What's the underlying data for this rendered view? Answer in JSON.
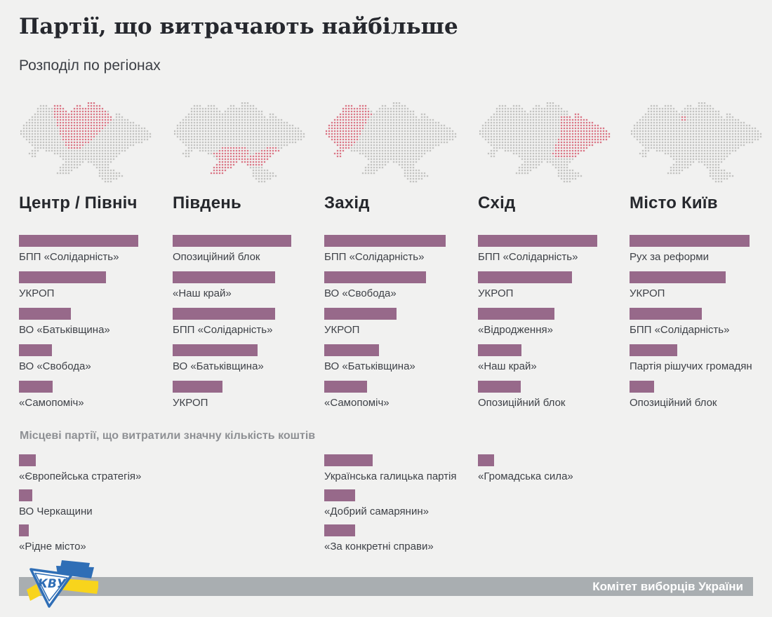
{
  "header": {
    "title": "Партії, що витрачають найбільше",
    "subtitle": "Розподіл по регіонах"
  },
  "local_heading": "Місцеві партії, що витратили значну кількість коштів",
  "footer": {
    "credit": "Комітет виборців України",
    "logo_text": "КВУ"
  },
  "colors": {
    "background": "#f1f1f0",
    "bar": "#97698a",
    "dot_gray": "#b5b4b3",
    "dot_red": "#d25166",
    "title": "#26282e",
    "label": "#3e4147",
    "section_heading": "#8e9094",
    "footer_bar": "#a9aeb1",
    "footer_text": "#ffffff",
    "logo_blue": "#2f6eb6",
    "logo_yellow": "#f8d41c"
  },
  "chart_data": {
    "type": "bar",
    "orientation": "horizontal",
    "units": "relative bar width in px (no numeric values are shown in the image)",
    "regions": [
      {
        "title": "Центр / Північ",
        "map_highlight": "center_north",
        "parties": [
          {
            "name": "БПП «Солідарність»",
            "value": 170
          },
          {
            "name": "УКРОП",
            "value": 124
          },
          {
            "name": "ВО «Батьківщина»",
            "value": 74
          },
          {
            "name": "ВО «Свобода»",
            "value": 47
          },
          {
            "name": "«Самопоміч»",
            "value": 48
          }
        ],
        "local_parties": [
          {
            "name": "«Європейська стратегія»",
            "value": 24
          },
          {
            "name": "ВО Черкащини",
            "value": 19
          },
          {
            "name": "«Рідне місто»",
            "value": 14
          }
        ]
      },
      {
        "title": "Південь",
        "map_highlight": "south",
        "parties": [
          {
            "name": "Опозиційний блок",
            "value": 169
          },
          {
            "name": "«Наш край»",
            "value": 146
          },
          {
            "name": "БПП «Солідарність»",
            "value": 146
          },
          {
            "name": "ВО «Батьківщина»",
            "value": 121
          },
          {
            "name": "УКРОП",
            "value": 71
          }
        ],
        "local_parties": []
      },
      {
        "title": "Захід",
        "map_highlight": "west",
        "parties": [
          {
            "name": "БПП «Солідарність»",
            "value": 173
          },
          {
            "name": "ВО «Свобода»",
            "value": 145
          },
          {
            "name": "УКРОП",
            "value": 103
          },
          {
            "name": "ВО «Батьківщина»",
            "value": 78
          },
          {
            "name": "«Самопоміч»",
            "value": 61
          }
        ],
        "local_parties": [
          {
            "name": "Українська галицька партія",
            "value": 69
          },
          {
            "name": "«Добрий самарянин»",
            "value": 44
          },
          {
            "name": "«За конкретні справи»",
            "value": 44
          }
        ]
      },
      {
        "title": "Схід",
        "map_highlight": "east",
        "parties": [
          {
            "name": "БПП «Солідарність»",
            "value": 170
          },
          {
            "name": "УКРОП",
            "value": 134
          },
          {
            "name": "«Відродження»",
            "value": 109
          },
          {
            "name": "«Наш край»",
            "value": 62
          },
          {
            "name": "Опозиційний блок",
            "value": 61
          }
        ],
        "local_parties": [
          {
            "name": "«Громадська сила»",
            "value": 23
          }
        ]
      },
      {
        "title": "Місто Київ",
        "map_highlight": "kyiv_city",
        "parties": [
          {
            "name": "Рух за реформи",
            "value": 171
          },
          {
            "name": "УКРОП",
            "value": 137
          },
          {
            "name": "БПП «Солідарність»",
            "value": 103
          },
          {
            "name": "Партія рішучих громадян",
            "value": 68
          },
          {
            "name": "Опозиційний блок",
            "value": 35
          }
        ],
        "local_parties": []
      }
    ]
  },
  "map": {
    "pitch": 4,
    "dot_size": 2,
    "grid": [
      "........................###....................",
      ".......###..###.....##..#####..................",
      "......##########...###########.................",
      "......###########.##############...............",
      ".....###########################..##...........",
      "....#############################.###..........",
      "...####################################........",
      "..#######################################......",
      ".##########################################....",
      ".############################################..",
      "##############################################.",
      "###############################################",
      ".##############################################",
      "..############################################.",
      "...#########################################...",
      "....#####################################......",
      ".....##################################........",
      "....###..#############################.........",
      "...###......########################...........",
      "....##........#####################............",
      "...............###################.............",
      "................#######.#########..............",
      "...............#######....######...............",
      "..............#######......#####...............",
      "..............#####.........######.............",
      ".............#####..........########...........",
      "............................#########..........",
      ".............................######............",
      "..............................###.............."
    ],
    "highlights": {
      "center_north": [
        [
          0,
          24,
          26
        ],
        [
          1,
          12,
          14
        ],
        [
          1,
          20,
          21
        ],
        [
          1,
          24,
          28
        ],
        [
          2,
          12,
          15
        ],
        [
          2,
          19,
          29
        ],
        [
          3,
          12,
          16
        ],
        [
          3,
          18,
          30
        ],
        [
          4,
          12,
          31
        ],
        [
          5,
          12,
          32
        ],
        [
          6,
          13,
          32
        ],
        [
          7,
          13,
          31
        ],
        [
          8,
          13,
          30
        ],
        [
          9,
          14,
          29
        ],
        [
          10,
          14,
          28
        ],
        [
          11,
          14,
          27
        ],
        [
          12,
          15,
          26
        ],
        [
          13,
          15,
          25
        ],
        [
          14,
          16,
          24
        ],
        [
          15,
          16,
          22
        ],
        [
          16,
          17,
          21
        ]
      ],
      "south": [
        [
          16,
          17,
          25
        ],
        [
          16,
          33,
          36
        ],
        [
          17,
          16,
          26
        ],
        [
          17,
          31,
          37
        ],
        [
          18,
          14,
          26
        ],
        [
          18,
          29,
          35
        ],
        [
          19,
          15,
          25
        ],
        [
          19,
          27,
          34
        ],
        [
          20,
          16,
          33
        ],
        [
          21,
          16,
          22
        ],
        [
          21,
          24,
          32
        ],
        [
          22,
          15,
          21
        ],
        [
          22,
          26,
          31
        ],
        [
          23,
          14,
          20
        ],
        [
          24,
          14,
          18
        ],
        [
          25,
          13,
          17
        ]
      ],
      "west": [
        [
          1,
          7,
          9
        ],
        [
          1,
          12,
          14
        ],
        [
          2,
          6,
          14
        ],
        [
          3,
          6,
          15
        ],
        [
          4,
          5,
          16
        ],
        [
          5,
          4,
          15
        ],
        [
          6,
          3,
          14
        ],
        [
          7,
          2,
          14
        ],
        [
          8,
          1,
          13
        ],
        [
          9,
          1,
          13
        ],
        [
          10,
          0,
          12
        ],
        [
          11,
          0,
          12
        ],
        [
          12,
          1,
          11
        ],
        [
          13,
          2,
          11
        ],
        [
          14,
          3,
          10
        ],
        [
          15,
          4,
          9
        ],
        [
          16,
          5,
          8
        ],
        [
          17,
          4,
          6
        ],
        [
          18,
          3,
          5
        ],
        [
          19,
          4,
          5
        ]
      ],
      "east": [
        [
          4,
          34,
          35
        ],
        [
          5,
          29,
          32
        ],
        [
          5,
          34,
          36
        ],
        [
          6,
          29,
          38
        ],
        [
          7,
          29,
          40
        ],
        [
          8,
          29,
          42
        ],
        [
          9,
          29,
          44
        ],
        [
          10,
          29,
          45
        ],
        [
          11,
          29,
          46
        ],
        [
          12,
          29,
          46
        ],
        [
          13,
          28,
          45
        ],
        [
          14,
          28,
          43
        ],
        [
          15,
          27,
          40
        ],
        [
          16,
          27,
          38
        ],
        [
          17,
          27,
          37
        ],
        [
          18,
          26,
          35
        ],
        [
          19,
          27,
          34
        ]
      ],
      "kyiv_city": [
        [
          5,
          18,
          19
        ],
        [
          6,
          18,
          19
        ]
      ]
    }
  }
}
